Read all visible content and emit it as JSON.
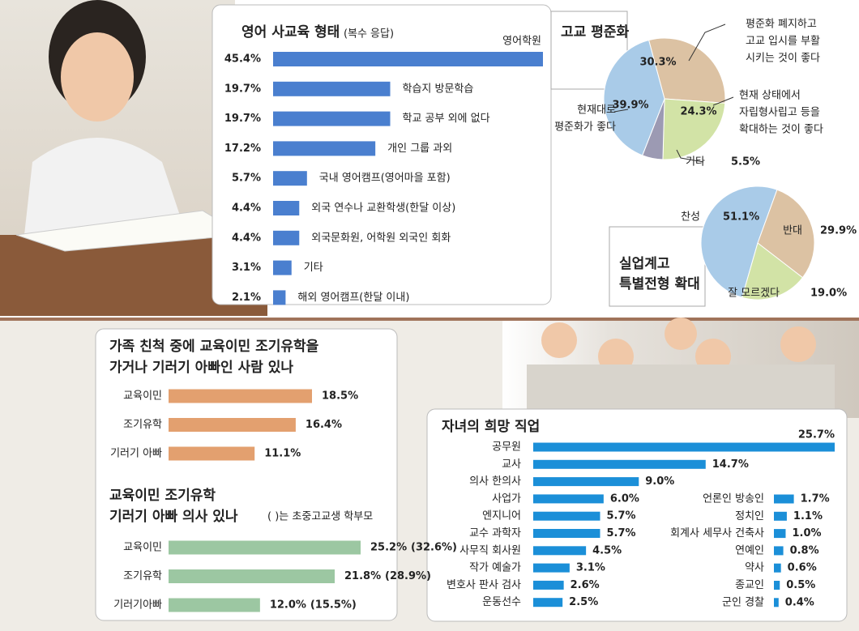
{
  "chart_data": [
    {
      "type": "bar",
      "orientation": "horizontal",
      "title": "영어 사교육 형태",
      "subtitle": "(복수 응답)",
      "color": "#4a7fcf",
      "categories": [
        "영어학원",
        "학습지 방문학습",
        "학교 공부 외에 없다",
        "개인 그룹 과외",
        "국내 영어캠프(영어마을 포함)",
        "외국 연수나 교환학생(한달 이상)",
        "외국문화원, 어학원 외국인 회화",
        "기타",
        "해외 영어캠프(한달 이내)"
      ],
      "values": [
        45.4,
        19.7,
        19.7,
        17.2,
        5.7,
        4.4,
        4.4,
        3.1,
        2.1
      ],
      "value_labels": [
        "45.4%",
        "19.7%",
        "19.7%",
        "17.2%",
        "5.7%",
        "4.4%",
        "4.4%",
        "3.1%",
        "2.1%"
      ]
    },
    {
      "type": "pie",
      "title": "고교 평준화",
      "categories": [
        [
          "평준화 폐지하고",
          "고교 입시를 부활",
          "시키는 것이 좋다"
        ],
        [
          "현재 상태에서",
          "자립형사립고 등을",
          "확대하는 것이 좋다"
        ],
        [
          "기타"
        ],
        [
          "현재대로",
          "평준화가 좋다"
        ]
      ],
      "values": [
        30.3,
        24.3,
        5.5,
        39.9
      ],
      "value_labels": [
        "30.3%",
        "24.3%",
        "5.5%",
        "39.9%"
      ],
      "colors": [
        "#dcc2a3",
        "#d2e3a6",
        "#9c9ab3",
        "#a9cbe8"
      ]
    },
    {
      "type": "pie",
      "title": [
        "실업계고",
        "특별전형 확대"
      ],
      "categories": [
        [
          "찬성"
        ],
        [
          "반대"
        ],
        [
          "잘 모르겠다"
        ]
      ],
      "values": [
        51.1,
        29.9,
        19.0
      ],
      "value_labels": [
        "51.1%",
        "29.9%",
        "19.0%"
      ],
      "colors": [
        "#a9cbe8",
        "#dcc2a3",
        "#d2e3a6"
      ]
    },
    {
      "type": "bar",
      "orientation": "horizontal",
      "title": [
        "가족 친척 중에 교육이민 조기유학을",
        "가거나 기러기 아빠인 사람 있나"
      ],
      "color": "#e3a06f",
      "categories": [
        "교육이민",
        "조기유학",
        "기러기 아빠"
      ],
      "values": [
        18.5,
        16.4,
        11.1
      ],
      "value_labels": [
        "18.5%",
        "16.4%",
        "11.1%"
      ]
    },
    {
      "type": "bar",
      "orientation": "horizontal",
      "title": [
        "교육이민 조기유학",
        "기러기 아빠 의사 있나"
      ],
      "note": "(   )는 초중고교생 학부모",
      "color": "#9cc7a2",
      "categories": [
        "교육이민",
        "조기유학",
        "기러기아빠"
      ],
      "values": [
        25.2,
        21.8,
        12.0
      ],
      "value_labels": [
        "25.2%",
        "21.8%",
        "12.0%"
      ],
      "paren_values": [
        32.6,
        28.9,
        15.5
      ],
      "paren_value_labels": [
        "(32.6%)",
        "(28.9%)",
        "(15.5%)"
      ]
    },
    {
      "type": "bar",
      "orientation": "horizontal",
      "title": "자녀의 희망 직업",
      "color": "#1b8fd8",
      "categories": [
        "공무원",
        "교사",
        "의사 한의사",
        "사업가",
        "엔지니어",
        "교수 과학자",
        "사무직 회사원",
        "작가 예술가",
        "변호사 판사 검사",
        "운동선수",
        "언론인 방송인",
        "정치인",
        "회계사 세무사 건축사",
        "연예인",
        "약사",
        "종교인",
        "군인 경찰"
      ],
      "values": [
        25.7,
        14.7,
        9.0,
        6.0,
        5.7,
        5.7,
        4.5,
        3.1,
        2.6,
        2.5,
        1.7,
        1.1,
        1.0,
        0.8,
        0.6,
        0.5,
        0.4
      ],
      "value_labels": [
        "25.7%",
        "14.7%",
        "9.0%",
        "6.0%",
        "5.7%",
        "5.7%",
        "4.5%",
        "3.1%",
        "2.6%",
        "2.5%",
        "1.7%",
        "1.1%",
        "1.0%",
        "0.8%",
        "0.6%",
        "0.5%",
        "0.4%"
      ]
    }
  ]
}
